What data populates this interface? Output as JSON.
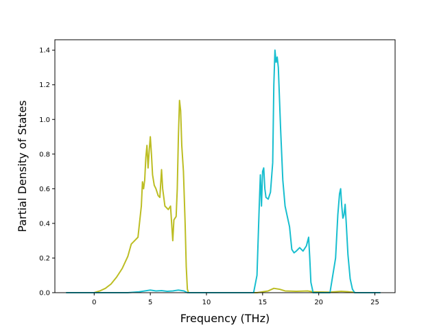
{
  "chart_data": {
    "type": "line",
    "title": "",
    "xlabel": "Frequency (THz)",
    "ylabel": "Partial Density of States",
    "xlim": [
      -3.5,
      26.8
    ],
    "ylim": [
      0,
      1.46
    ],
    "xticks": [
      0,
      5,
      10,
      15,
      20,
      25
    ],
    "yticks": [
      0.0,
      0.2,
      0.4,
      0.6,
      0.8,
      1.0,
      1.2,
      1.4
    ],
    "xtick_labels": [
      "0",
      "5",
      "10",
      "15",
      "20",
      "25"
    ],
    "ytick_labels": [
      "0.0",
      "0.2",
      "0.4",
      "0.6",
      "0.8",
      "1.0",
      "1.2",
      "1.4"
    ],
    "grid": false,
    "series": [
      {
        "color": "#bcbd22",
        "points": [
          [
            -2.5,
            0
          ],
          [
            0,
            0
          ],
          [
            0.5,
            0.01
          ],
          [
            1,
            0.025
          ],
          [
            1.5,
            0.05
          ],
          [
            2,
            0.09
          ],
          [
            2.5,
            0.14
          ],
          [
            3,
            0.21
          ],
          [
            3.3,
            0.28
          ],
          [
            3.6,
            0.3
          ],
          [
            3.9,
            0.32
          ],
          [
            4,
            0.38
          ],
          [
            4.2,
            0.5
          ],
          [
            4.3,
            0.64
          ],
          [
            4.4,
            0.6
          ],
          [
            4.5,
            0.65
          ],
          [
            4.6,
            0.78
          ],
          [
            4.7,
            0.85
          ],
          [
            4.8,
            0.72
          ],
          [
            4.9,
            0.82
          ],
          [
            5,
            0.9
          ],
          [
            5.1,
            0.8
          ],
          [
            5.2,
            0.68
          ],
          [
            5.35,
            0.62
          ],
          [
            5.5,
            0.6
          ],
          [
            5.7,
            0.56
          ],
          [
            5.85,
            0.55
          ],
          [
            6,
            0.71
          ],
          [
            6.1,
            0.6
          ],
          [
            6.3,
            0.5
          ],
          [
            6.6,
            0.48
          ],
          [
            6.8,
            0.5
          ],
          [
            6.9,
            0.4
          ],
          [
            7,
            0.3
          ],
          [
            7.1,
            0.42
          ],
          [
            7.3,
            0.44
          ],
          [
            7.4,
            0.6
          ],
          [
            7.5,
            0.9
          ],
          [
            7.6,
            1.11
          ],
          [
            7.7,
            1.05
          ],
          [
            7.8,
            0.85
          ],
          [
            7.95,
            0.7
          ],
          [
            8.1,
            0.4
          ],
          [
            8.2,
            0.15
          ],
          [
            8.3,
            0.02
          ],
          [
            8.4,
            0
          ],
          [
            14.5,
            0
          ],
          [
            15,
            0.005
          ],
          [
            15.5,
            0.01
          ],
          [
            16,
            0.025
          ],
          [
            16.5,
            0.02
          ],
          [
            17,
            0.01
          ],
          [
            18,
            0.008
          ],
          [
            19,
            0.01
          ],
          [
            19.5,
            0.005
          ],
          [
            21,
            0.003
          ],
          [
            22,
            0.008
          ],
          [
            22.5,
            0.006
          ],
          [
            23,
            0.003
          ],
          [
            23.3,
            0
          ]
        ]
      },
      {
        "color": "#17becf",
        "points": [
          [
            -2.5,
            0
          ],
          [
            3,
            0
          ],
          [
            4,
            0.005
          ],
          [
            4.5,
            0.01
          ],
          [
            5,
            0.015
          ],
          [
            5.5,
            0.01
          ],
          [
            6,
            0.012
          ],
          [
            6.5,
            0.008
          ],
          [
            7,
            0.01
          ],
          [
            7.5,
            0.015
          ],
          [
            8,
            0.01
          ],
          [
            8.3,
            0
          ],
          [
            14.2,
            0
          ],
          [
            14.5,
            0.1
          ],
          [
            14.7,
            0.5
          ],
          [
            14.8,
            0.68
          ],
          [
            14.9,
            0.5
          ],
          [
            15,
            0.7
          ],
          [
            15.1,
            0.72
          ],
          [
            15.2,
            0.6
          ],
          [
            15.3,
            0.55
          ],
          [
            15.5,
            0.54
          ],
          [
            15.7,
            0.58
          ],
          [
            15.9,
            0.75
          ],
          [
            16,
            1.2
          ],
          [
            16.1,
            1.4
          ],
          [
            16.2,
            1.33
          ],
          [
            16.3,
            1.36
          ],
          [
            16.4,
            1.3
          ],
          [
            16.6,
            0.95
          ],
          [
            16.8,
            0.65
          ],
          [
            17,
            0.5
          ],
          [
            17.2,
            0.44
          ],
          [
            17.4,
            0.38
          ],
          [
            17.6,
            0.25
          ],
          [
            17.8,
            0.23
          ],
          [
            18,
            0.24
          ],
          [
            18.3,
            0.26
          ],
          [
            18.6,
            0.24
          ],
          [
            18.9,
            0.27
          ],
          [
            19.1,
            0.32
          ],
          [
            19.2,
            0.2
          ],
          [
            19.3,
            0.06
          ],
          [
            19.5,
            0
          ],
          [
            21,
            0
          ],
          [
            21.2,
            0.08
          ],
          [
            21.5,
            0.2
          ],
          [
            21.7,
            0.45
          ],
          [
            21.85,
            0.57
          ],
          [
            21.95,
            0.6
          ],
          [
            22.05,
            0.5
          ],
          [
            22.15,
            0.43
          ],
          [
            22.25,
            0.45
          ],
          [
            22.35,
            0.51
          ],
          [
            22.45,
            0.4
          ],
          [
            22.6,
            0.22
          ],
          [
            22.8,
            0.08
          ],
          [
            23,
            0.02
          ],
          [
            23.2,
            0
          ],
          [
            25.5,
            0
          ]
        ]
      }
    ]
  }
}
